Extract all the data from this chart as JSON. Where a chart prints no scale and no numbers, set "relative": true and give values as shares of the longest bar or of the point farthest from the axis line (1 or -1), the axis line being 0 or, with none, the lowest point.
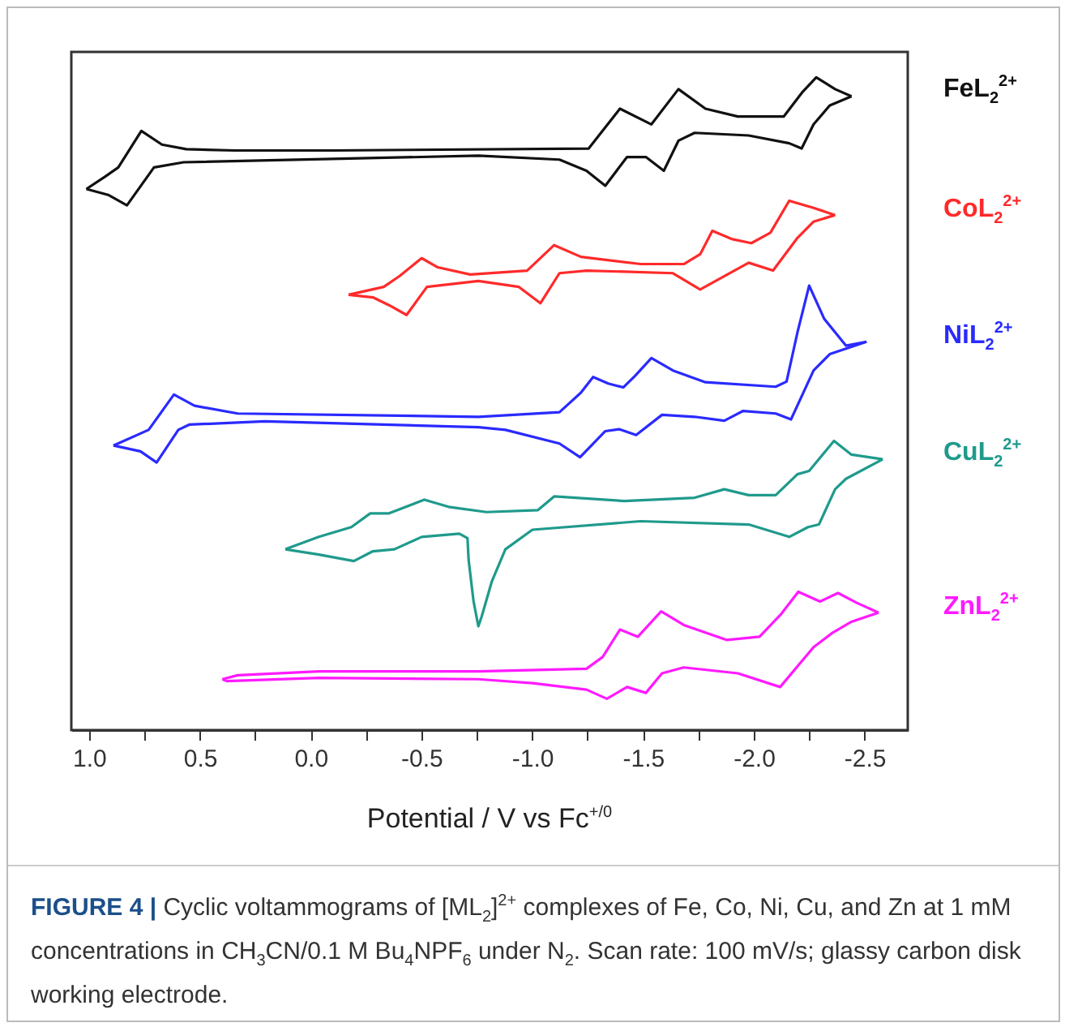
{
  "chart_data": {
    "type": "line",
    "relative": true,
    "xlabel": "Potential / V vs Fc$^{+/0}$",
    "annotations": [
      "FIGURE 4 |",
      "Cyclic voltammograms of [ML$_{2}$]$^{2+}$ complexes of Fe, Co, Ni, Cu, and Zn at 1 mM concentrations in CH$_{3}$CN/0.1 M Bu$_{4}$NPF$_{6}$ under N$_{2}$. Scan rate: 100 mV/s; glassy carbon disk working electrode."
    ],
    "xlim": [
      1.08,
      -2.695
    ],
    "xticks": [
      {
        "value": 1,
        "label": "1.0"
      },
      {
        "value": 0.75,
        "label": null
      },
      {
        "value": 0.5,
        "label": "0.5"
      },
      {
        "value": 0.25,
        "label": null
      },
      {
        "value": 0,
        "label": "0.0"
      },
      {
        "value": -0.25,
        "label": null
      },
      {
        "value": -0.5,
        "label": "-0.5"
      },
      {
        "value": -0.75,
        "label": null
      },
      {
        "value": -1,
        "label": "-1.0"
      },
      {
        "value": -1.25,
        "label": null
      },
      {
        "value": -1.5,
        "label": "-1.5"
      },
      {
        "value": -1.75,
        "label": null
      },
      {
        "value": -2,
        "label": "-2.0"
      },
      {
        "value": -2.25,
        "label": null
      },
      {
        "value": -2.5,
        "label": "-2.5"
      }
    ],
    "grid": false,
    "legend": false,
    "marker": "none",
    "line_style": "solid",
    "series": [
      {
        "name": "FeL$_{2}$$^{2+}$",
        "color": "#111111",
        "x": [
          1.012,
          0.927,
          0.868,
          0.764,
          0.671,
          0.561,
          0.341,
          -0.098,
          -1.255,
          -1.396,
          -1.538,
          -1.66,
          -1.782,
          -1.928,
          -2.135,
          -2.221,
          -2.282,
          -2.367,
          -2.441
        ],
        "values": [
          0.829,
          0.848,
          0.862,
          0.918,
          0.897,
          0.89,
          0.888,
          0.888,
          0.891,
          0.952,
          0.928,
          0.982,
          0.952,
          0.94,
          0.94,
          0.978,
          1.0,
          0.982,
          0.971
        ]
      },
      {
        "color": "#111111",
        "x": [
          -2.441,
          -2.343,
          -2.27,
          -2.216,
          -2.16,
          -1.977,
          -1.733,
          -1.66,
          -1.594,
          -1.513,
          -1.428,
          -1.33,
          -1.245,
          -1.123,
          -0.757,
          0.573,
          0.707,
          0.829,
          0.914,
          1.012
        ],
        "values": [
          0.971,
          0.957,
          0.928,
          0.891,
          0.899,
          0.911,
          0.915,
          0.903,
          0.857,
          0.878,
          0.878,
          0.834,
          0.857,
          0.874,
          0.88,
          0.87,
          0.862,
          0.804,
          0.82,
          0.829
        ]
      },
      {
        "name": "CoL$_{2}$$^{2+}$",
        "color": "#ff2a2a",
        "x": [
          -0.171,
          -0.33,
          -0.403,
          -0.501,
          -0.574,
          -0.72,
          -0.977,
          -1.099,
          -1.22,
          -1.489,
          -1.684,
          -1.758,
          -1.813,
          -1.904,
          -1.989,
          -2.075,
          -2.16,
          -2.27,
          -2.367
        ],
        "values": [
          0.667,
          0.679,
          0.696,
          0.723,
          0.709,
          0.698,
          0.704,
          0.743,
          0.725,
          0.714,
          0.714,
          0.729,
          0.765,
          0.752,
          0.746,
          0.762,
          0.811,
          0.8,
          0.789
        ]
      },
      {
        "color": "#ff2a2a",
        "x": [
          -2.367,
          -2.27,
          -2.197,
          -2.087,
          -1.977,
          -1.758,
          -1.635,
          -1.245,
          -1.123,
          -1.037,
          -0.94,
          -0.757,
          -0.525,
          -0.433,
          -0.354,
          -0.281,
          -0.171
        ],
        "values": [
          0.789,
          0.779,
          0.754,
          0.704,
          0.716,
          0.675,
          0.7,
          0.704,
          0.7,
          0.654,
          0.679,
          0.688,
          0.679,
          0.636,
          0.651,
          0.663,
          0.667
        ]
      },
      {
        "name": "NiL$_{2}$$^{2+}$",
        "color": "#2a2aff",
        "x": [
          0.89,
          0.731,
          0.617,
          0.524,
          0.329,
          -0.757,
          -1.123,
          -1.22,
          -1.275,
          -1.343,
          -1.411,
          -1.465,
          -1.538,
          -1.635,
          -1.782,
          -2.099,
          -2.148,
          -2.197,
          -2.25,
          -2.318,
          -2.416,
          -2.509
        ],
        "values": [
          0.436,
          0.46,
          0.514,
          0.497,
          0.485,
          0.48,
          0.487,
          0.517,
          0.541,
          0.531,
          0.525,
          0.543,
          0.57,
          0.551,
          0.533,
          0.526,
          0.534,
          0.609,
          0.681,
          0.63,
          0.589,
          0.595
        ]
      },
      {
        "color": "#2a2aff",
        "x": [
          -2.509,
          -2.343,
          -2.27,
          -2.168,
          -2.099,
          -1.952,
          -1.867,
          -1.733,
          -1.586,
          -1.469,
          -1.392,
          -1.33,
          -1.216,
          -1.123,
          -0.879,
          -0.757,
          0.207,
          0.548,
          0.597,
          0.695,
          0.768,
          0.89
        ],
        "values": [
          0.595,
          0.576,
          0.551,
          0.476,
          0.485,
          0.489,
          0.474,
          0.48,
          0.483,
          0.452,
          0.461,
          0.458,
          0.418,
          0.439,
          0.46,
          0.464,
          0.473,
          0.468,
          0.46,
          0.41,
          0.427,
          0.436
        ]
      },
      {
        "name": "CuL$_{2}$$^{2+}$",
        "color": "#1f9a8c",
        "x": [
          0.114,
          -0.037,
          -0.184,
          -0.269,
          -0.354,
          -0.513,
          -0.623,
          -0.794,
          -1.026,
          -1.099,
          -1.416,
          -1.733,
          -1.867,
          -1.977,
          -2.099,
          -2.197,
          -2.25,
          -2.362,
          -2.441,
          -2.582
        ],
        "values": [
          0.277,
          0.296,
          0.311,
          0.332,
          0.332,
          0.353,
          0.342,
          0.334,
          0.337,
          0.358,
          0.351,
          0.356,
          0.369,
          0.36,
          0.36,
          0.392,
          0.397,
          0.443,
          0.422,
          0.415
        ]
      },
      {
        "color": "#1f9a8c",
        "x": [
          -2.582,
          -2.416,
          -2.367,
          -2.294,
          -2.245,
          -2.16,
          -1.977,
          -1.489,
          -1.001,
          -0.879,
          -0.818,
          -0.772,
          -0.757,
          -0.735,
          -0.713,
          -0.708,
          -0.671,
          -0.501,
          -0.378,
          -0.281,
          -0.195,
          -0.037,
          0.114
        ],
        "values": [
          0.415,
          0.385,
          0.369,
          0.315,
          0.311,
          0.296,
          0.315,
          0.32,
          0.307,
          0.277,
          0.228,
          0.174,
          0.159,
          0.198,
          0.261,
          0.294,
          0.301,
          0.296,
          0.277,
          0.274,
          0.259,
          0.269,
          0.277
        ]
      },
      {
        "name": "ZnL$_{2}$$^{2+}$",
        "color": "#ff1aff",
        "x": [
          0.398,
          0.329,
          -0.037,
          -0.757,
          -1.245,
          -1.318,
          -1.396,
          -1.477,
          -1.582,
          -1.684,
          -1.879,
          -2.026,
          -2.124,
          -2.201,
          -2.299,
          -2.38,
          -2.465,
          -2.563
        ],
        "values": [
          0.078,
          0.084,
          0.09,
          0.09,
          0.094,
          0.112,
          0.154,
          0.143,
          0.182,
          0.161,
          0.138,
          0.143,
          0.178,
          0.212,
          0.197,
          0.21,
          0.195,
          0.18
        ]
      },
      {
        "color": "#ff1aff",
        "x": [
          -2.563,
          -2.441,
          -2.355,
          -2.27,
          -2.119,
          -1.928,
          -1.684,
          -1.586,
          -1.513,
          -1.428,
          -1.337,
          -1.245,
          -1.001,
          -0.757,
          -0.037,
          0.378,
          0.398
        ],
        "values": [
          0.18,
          0.166,
          0.149,
          0.127,
          0.066,
          0.087,
          0.096,
          0.087,
          0.057,
          0.066,
          0.048,
          0.062,
          0.072,
          0.078,
          0.08,
          0.075,
          0.078
        ]
      }
    ]
  }
}
